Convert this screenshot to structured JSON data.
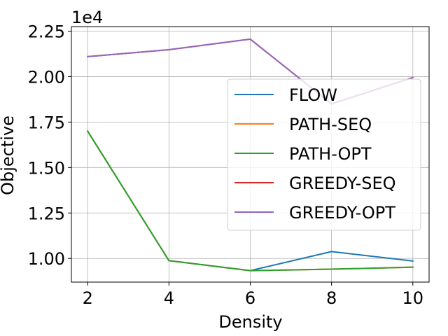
{
  "chart_data": {
    "type": "line",
    "title": "",
    "xlabel": "Density",
    "ylabel": "Objective",
    "offset_label": "1e4",
    "x": [
      2,
      4,
      6,
      8,
      10
    ],
    "x_ticks": [
      "2",
      "4",
      "6",
      "8",
      "10"
    ],
    "y_ticks": [
      "1.00",
      "1.25",
      "1.50",
      "1.75",
      "2.00",
      "2.25"
    ],
    "y_tick_values": [
      10000,
      12500,
      15000,
      17500,
      20000,
      22500
    ],
    "xlim": [
      1.6,
      10.4
    ],
    "ylim": [
      8700,
      22750
    ],
    "grid": true,
    "legend_position": "center-right",
    "series": [
      {
        "name": "FLOW",
        "color": "#1f77b4",
        "values": [
          17000,
          9880,
          9330,
          10380,
          9860
        ]
      },
      {
        "name": "PATH-SEQ",
        "color": "#ff7f0e",
        "values": [
          17000,
          9880,
          9330,
          9410,
          9520
        ]
      },
      {
        "name": "PATH-OPT",
        "color": "#2ca02c",
        "values": [
          17000,
          9880,
          9330,
          9410,
          9520
        ]
      },
      {
        "name": "GREEDY-SEQ",
        "color": "#d62728",
        "values": [
          21100,
          21480,
          22060,
          18500,
          19950
        ]
      },
      {
        "name": "GREEDY-OPT",
        "color": "#9467bd",
        "values": [
          21100,
          21480,
          22060,
          18500,
          19950
        ]
      }
    ]
  }
}
